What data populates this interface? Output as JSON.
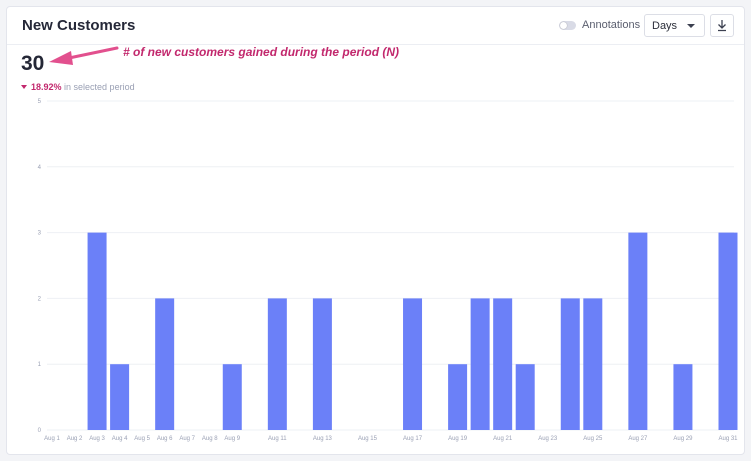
{
  "header": {
    "title": "New Customers",
    "annotations_label": "Annotations",
    "interval_select_value": "Days"
  },
  "summary": {
    "total": "30",
    "delta_percent": "18.92%",
    "delta_text": " in selected period"
  },
  "callout_text": "# of new customers gained during the period (N)",
  "colors": {
    "bar": "#6b80f8",
    "accent": "#c2286d",
    "grid": "#eef0f4"
  },
  "chart_data": {
    "type": "bar",
    "categories": [
      "Aug 1",
      "Aug 2",
      "Aug 3",
      "Aug 4",
      "Aug 5",
      "Aug 6",
      "Aug 7",
      "Aug 8",
      "Aug 9",
      "Aug 10",
      "Aug 11",
      "Aug 12",
      "Aug 13",
      "Aug 14",
      "Aug 15",
      "Aug 16",
      "Aug 17",
      "Aug 18",
      "Aug 19",
      "Aug 20",
      "Aug 21",
      "Aug 22",
      "Aug 23",
      "Aug 24",
      "Aug 25",
      "Aug 26",
      "Aug 27",
      "Aug 28",
      "Aug 29",
      "Aug 30",
      "Aug 31"
    ],
    "tick_labels": [
      "Aug 1",
      "Aug 2",
      "Aug 3",
      "Aug 4",
      "Aug 5",
      "Aug 6",
      "Aug 7",
      "Aug 8",
      "Aug 9",
      "Aug 11",
      "Aug 13",
      "Aug 15",
      "Aug 17",
      "Aug 19",
      "Aug 21",
      "Aug 23",
      "Aug 25",
      "Aug 27",
      "Aug 29",
      "Aug 31"
    ],
    "values": [
      0,
      0,
      3,
      1,
      0,
      2,
      0,
      0,
      1,
      0,
      2,
      0,
      2,
      0,
      0,
      0,
      2,
      0,
      1,
      2,
      2,
      1,
      0,
      2,
      2,
      0,
      3,
      0,
      1,
      0,
      3
    ],
    "yticks": [
      0,
      1,
      2,
      3,
      4,
      5
    ],
    "ylim": [
      0,
      5
    ],
    "grid": true
  }
}
